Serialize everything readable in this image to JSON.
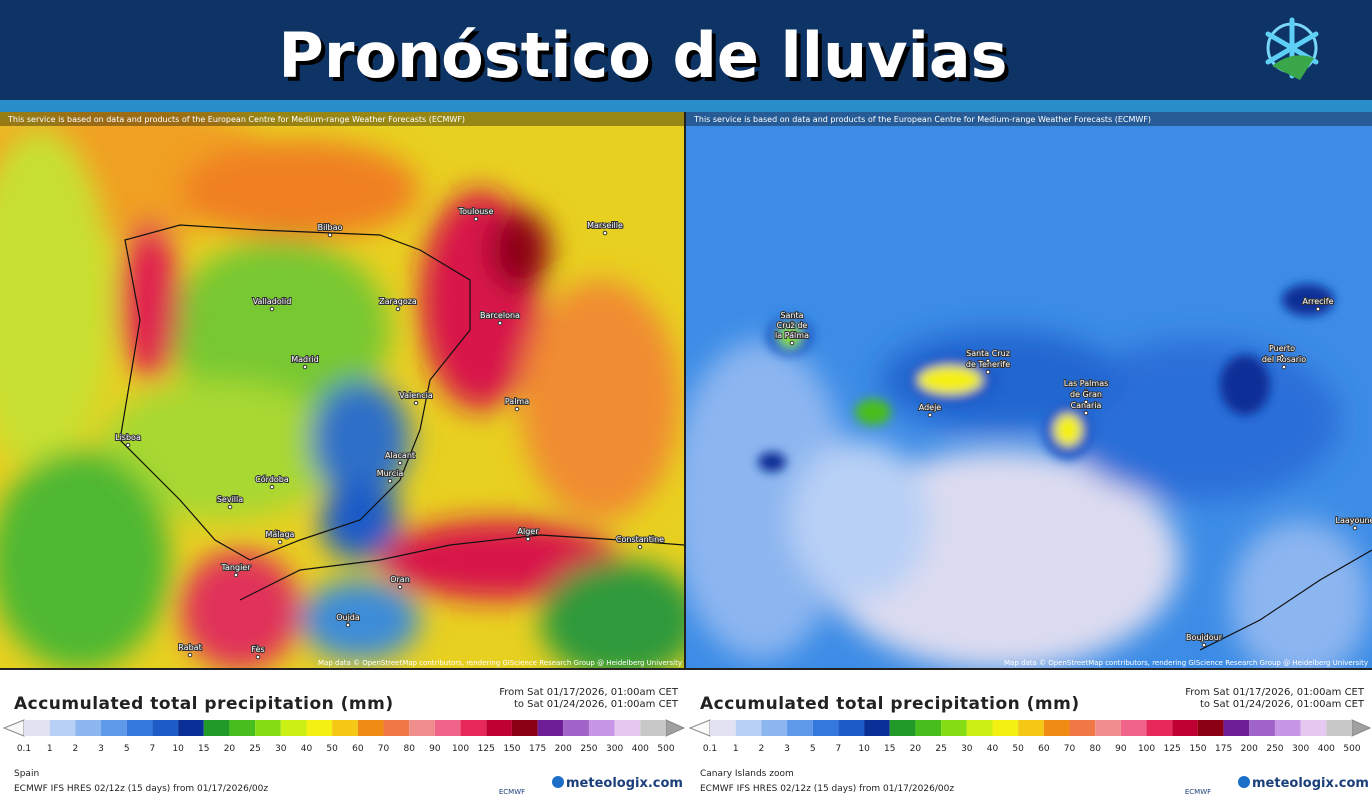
{
  "header": {
    "title": "Pronóstico de lluvias"
  },
  "scale": {
    "ticks": [
      0.1,
      1,
      2,
      3,
      5,
      7,
      10,
      15,
      20,
      25,
      30,
      40,
      50,
      60,
      70,
      80,
      90,
      100,
      125,
      150,
      175,
      200,
      250,
      300,
      400,
      500
    ],
    "colors": [
      "#e2e2f2",
      "#b8d0f5",
      "#8cb6f0",
      "#5e98e8",
      "#3478dc",
      "#1e5cc8",
      "#0a2f96",
      "#229a2a",
      "#48be1e",
      "#86dc14",
      "#ccf014",
      "#f4f014",
      "#f4c814",
      "#f08c14",
      "#f07846",
      "#f08e8e",
      "#f0648c",
      "#e6285a",
      "#be0032",
      "#8c0014",
      "#6e1e96",
      "#a064c8",
      "#c896e6",
      "#e6c8f0",
      "#c8c8c8"
    ]
  },
  "panels": [
    {
      "notice": "This service is based on data and products of the European Centre for Medium-range Weather Forecasts (ECMWF)",
      "attribution": "Map data © OpenStreetMap contributors, rendering GIScience Research Group @ Heidelberg University",
      "legend_title": "Accumulated total precipitation (mm)",
      "from": "From Sat 01/17/2026, 01:00am CET",
      "to": "to Sat 01/24/2026, 01:00am CET",
      "region": "Spain",
      "model": "ECMWF IFS HRES 02/12z (15 days) from 01/17/2026/00z",
      "brand": "meteologix.com",
      "ecmwf": "ECMWF",
      "labels": [
        "Toulouse",
        "Bilbao",
        "Marseille",
        "Valladolid",
        "Zaragoza",
        "Madrid",
        "Barcelona",
        "Valencia",
        "Palma",
        "Lisboa",
        "Alacant",
        "Murcia",
        "Córdoba",
        "Sevilla",
        "Málaga",
        "Alger",
        "Constantine",
        "Tangier",
        "Oran",
        "Oujda",
        "Rabat",
        "Fès"
      ]
    },
    {
      "notice": "This service is based on data and products of the European Centre for Medium-range Weather Forecasts (ECMWF)",
      "attribution": "Map data © OpenStreetMap contributors, rendering GIScience Research Group @ Heidelberg University",
      "legend_title": "Accumulated total precipitation (mm)",
      "from": "From Sat 01/17/2026, 01:00am CET",
      "to": "to Sat 01/24/2026, 01:00am CET",
      "region": "Canary Islands zoom",
      "model": "ECMWF IFS HRES 02/12z (15 days) from 01/17/2026/00z",
      "brand": "meteologix.com",
      "ecmwf": "ECMWF",
      "labels": [
        "Santa",
        "Cruz de",
        "la Palma",
        "Santa Cruz",
        "de Tenerife",
        "Adeje",
        "Las Palmas",
        "de Gran",
        "Canaria",
        "Arrecife",
        "Puerto",
        "del Rosario",
        "Laayoune",
        "Boujdour"
      ]
    }
  ]
}
